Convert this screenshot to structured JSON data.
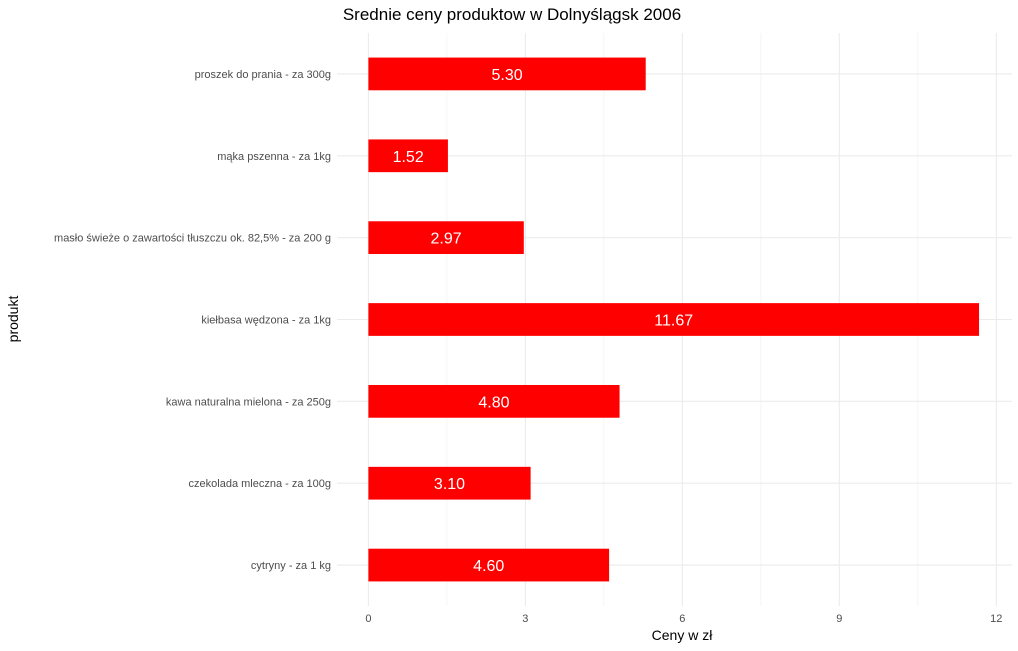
{
  "chart_data": {
    "type": "bar",
    "orientation": "horizontal",
    "title": "Srednie ceny produktow w Dolnyślągsk 2006",
    "xlabel": "Ceny w zł",
    "ylabel": "produkt",
    "categories": [
      "proszek do prania - za 300g",
      "mąka pszenna - za 1kg",
      "masło świeże o zawartości tłuszczu ok. 82,5% - za 200 g",
      "kiełbasa wędzona - za 1kg",
      "kawa naturalna mielona - za 250g",
      "czekolada mleczna - za 100g",
      "cytryny - za 1 kg"
    ],
    "values": [
      5.3,
      1.52,
      2.97,
      11.67,
      4.8,
      3.1,
      4.6
    ],
    "value_labels": [
      "5.30",
      "1.52",
      "2.97",
      "11.67",
      "4.80",
      "3.10",
      "4.60"
    ],
    "xlim": [
      -0.6,
      12.3
    ],
    "xticks": [
      0,
      3,
      6,
      9,
      12
    ],
    "xtick_labels": [
      "0",
      "3",
      "6",
      "9",
      "12"
    ],
    "grid": true,
    "legend": "none",
    "bar_color": "#ff0000",
    "label_color": "#ffffff"
  }
}
